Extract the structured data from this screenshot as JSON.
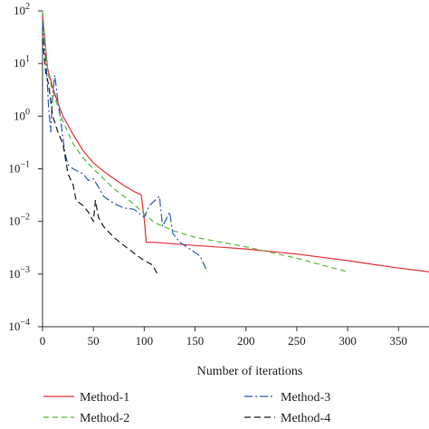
{
  "chart_data": {
    "type": "line",
    "title": "",
    "xlabel": "Number of iterations",
    "ylabel": "",
    "xlim": [
      0,
      380
    ],
    "ylim": [
      0.0001,
      100
    ],
    "yscale": "log",
    "grid": false,
    "legend_position": "bottom",
    "x_ticks": [
      0,
      50,
      100,
      150,
      200,
      250,
      300,
      350
    ],
    "y_ticks": [
      {
        "value": 100,
        "base": "10",
        "exp": "2"
      },
      {
        "value": 10,
        "base": "10",
        "exp": "1"
      },
      {
        "value": 1,
        "base": "10",
        "exp": "0"
      },
      {
        "value": 0.1,
        "base": "10",
        "exp": "−1"
      },
      {
        "value": 0.01,
        "base": "10",
        "exp": "−2"
      },
      {
        "value": 0.001,
        "base": "10",
        "exp": "−3"
      },
      {
        "value": 0.0001,
        "base": "10",
        "exp": "−4"
      }
    ],
    "series": [
      {
        "name": "Method-1",
        "color": "#e8303a",
        "dash": "solid",
        "points": [
          [
            0,
            80
          ],
          [
            5,
            8
          ],
          [
            10,
            3.5
          ],
          [
            15,
            1.8
          ],
          [
            20,
            1.0
          ],
          [
            30,
            0.45
          ],
          [
            40,
            0.22
          ],
          [
            50,
            0.13
          ],
          [
            60,
            0.09
          ],
          [
            70,
            0.065
          ],
          [
            80,
            0.048
          ],
          [
            90,
            0.037
          ],
          [
            97,
            0.032
          ],
          [
            100,
            0.011
          ],
          [
            102,
            0.004
          ],
          [
            110,
            0.004
          ],
          [
            150,
            0.0035
          ],
          [
            200,
            0.003
          ],
          [
            250,
            0.0024
          ],
          [
            300,
            0.0018
          ],
          [
            350,
            0.0013
          ],
          [
            380,
            0.0011
          ]
        ]
      },
      {
        "name": "Method-2",
        "color": "#5ab834",
        "dash": "6,4",
        "points": [
          [
            0,
            100
          ],
          [
            5,
            7
          ],
          [
            10,
            3
          ],
          [
            20,
            0.8
          ],
          [
            30,
            0.3
          ],
          [
            40,
            0.16
          ],
          [
            50,
            0.1
          ],
          [
            60,
            0.065
          ],
          [
            70,
            0.042
          ],
          [
            80,
            0.03
          ],
          [
            90,
            0.021
          ],
          [
            100,
            0.014
          ],
          [
            110,
            0.0095
          ],
          [
            130,
            0.0065
          ],
          [
            150,
            0.005
          ],
          [
            200,
            0.0033
          ],
          [
            250,
            0.002
          ],
          [
            300,
            0.0011
          ]
        ]
      },
      {
        "name": "Method-3",
        "color": "#2a5cb0",
        "dash": "9,3,2,3",
        "points": [
          [
            0,
            60
          ],
          [
            4,
            7
          ],
          [
            6,
            1.5
          ],
          [
            8,
            0.5
          ],
          [
            10,
            2.5
          ],
          [
            12,
            6
          ],
          [
            15,
            2
          ],
          [
            18,
            0.8
          ],
          [
            22,
            0.2
          ],
          [
            25,
            0.12
          ],
          [
            30,
            0.1
          ],
          [
            40,
            0.08
          ],
          [
            45,
            0.06
          ],
          [
            50,
            0.065
          ],
          [
            55,
            0.045
          ],
          [
            60,
            0.03
          ],
          [
            70,
            0.022
          ],
          [
            80,
            0.018
          ],
          [
            90,
            0.017
          ],
          [
            100,
            0.012
          ],
          [
            105,
            0.02
          ],
          [
            115,
            0.03
          ],
          [
            118,
            0.008
          ],
          [
            125,
            0.015
          ],
          [
            128,
            0.006
          ],
          [
            135,
            0.004
          ],
          [
            145,
            0.003
          ],
          [
            155,
            0.0022
          ],
          [
            162,
            0.0011
          ]
        ]
      },
      {
        "name": "Method-4",
        "color": "#1c1c1c",
        "dash": "7,4",
        "points": [
          [
            0,
            30
          ],
          [
            3,
            7
          ],
          [
            6,
            4
          ],
          [
            10,
            1
          ],
          [
            15,
            0.5
          ],
          [
            20,
            0.3
          ],
          [
            25,
            0.08
          ],
          [
            30,
            0.05
          ],
          [
            33,
            0.025
          ],
          [
            40,
            0.02
          ],
          [
            45,
            0.015
          ],
          [
            50,
            0.01
          ],
          [
            52,
            0.025
          ],
          [
            55,
            0.012
          ],
          [
            60,
            0.008
          ],
          [
            70,
            0.005
          ],
          [
            80,
            0.0035
          ],
          [
            90,
            0.0025
          ],
          [
            100,
            0.0018
          ],
          [
            108,
            0.0015
          ],
          [
            113,
            0.001
          ]
        ]
      }
    ]
  }
}
